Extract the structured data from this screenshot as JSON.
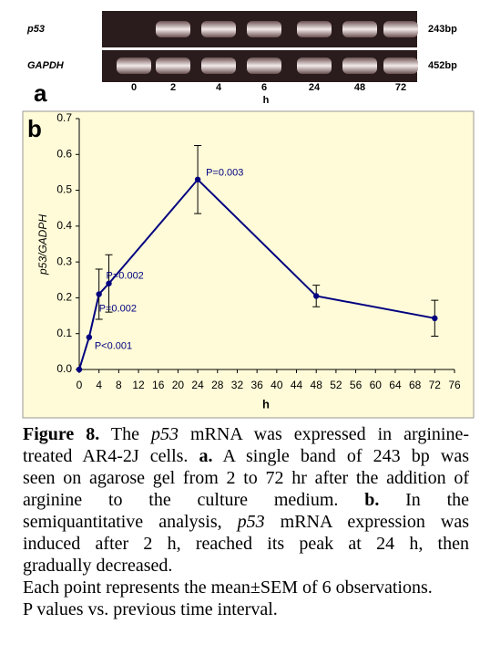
{
  "panel_a": {
    "label": "a",
    "rows": [
      {
        "name": "p53",
        "size": "243bp"
      },
      {
        "name": "GAPDH",
        "size": "452bp"
      }
    ],
    "lanes": [
      "0",
      "2",
      "4",
      "6",
      "24",
      "48",
      "72"
    ],
    "lane_unit": "h"
  },
  "panel_b": {
    "label": "b",
    "chart_data": {
      "type": "line",
      "x_label": "h",
      "y_label": "p53/GADPH",
      "x": [
        0,
        2,
        4,
        6,
        24,
        48,
        72
      ],
      "values": [
        0,
        0.09,
        0.21,
        0.24,
        0.53,
        0.205,
        0.143
      ],
      "errors": [
        null,
        null,
        0.07,
        0.08,
        0.095,
        0.03,
        0.05
      ],
      "color": "#000080",
      "annotations": [
        "P<0.001",
        "P=0.002",
        "P=0.002",
        "P=0.003"
      ],
      "xlim": [
        0,
        76
      ],
      "xticks": [
        0,
        4,
        8,
        12,
        16,
        20,
        24,
        28,
        32,
        36,
        40,
        44,
        48,
        52,
        56,
        60,
        64,
        68,
        72,
        76
      ],
      "ylim": [
        0,
        0.7
      ],
      "yticks": [
        {
          "value": 0,
          "label": "0.0"
        },
        0.1,
        0.2,
        0.3,
        0.4,
        0.5,
        0.6,
        0.7
      ]
    }
  },
  "caption": {
    "lines": [
      [
        {
          "text": "Figure 8.",
          "style": "bold"
        },
        {
          "text": " The ",
          "style": "normal"
        },
        {
          "text": "p53",
          "style": "italic"
        },
        {
          "text": " mRNA was expressed in arginine-",
          "style": "normal"
        }
      ],
      [
        {
          "text": "treated AR4-2J cells. ",
          "style": "normal"
        },
        {
          "text": "a.",
          "style": "bold"
        },
        {
          "text": " A single band of 243 bp was",
          "style": "normal"
        }
      ],
      [
        {
          "text": "seen on agarose gel from 2 to 72 hr after the addition of",
          "style": "normal"
        }
      ],
      [
        {
          "text": "arginine to the culture medium. ",
          "style": "normal"
        },
        {
          "text": "b.",
          "style": "bold"
        },
        {
          "text": " In the",
          "style": "normal"
        }
      ],
      [
        {
          "text": "semiquantitative analysis, ",
          "style": "normal"
        },
        {
          "text": "p53",
          "style": "italic"
        },
        {
          "text": " mRNA expression was",
          "style": "normal"
        }
      ],
      [
        {
          "text": "induced after 2 h, reached its peak at 24 h, then",
          "style": "normal"
        }
      ],
      [
        {
          "text": "gradually decreased.",
          "style": "normal"
        }
      ]
    ],
    "notes": [
      "Each point represents the mean±SEM of 6 observations.",
      "P values vs. previous time interval."
    ]
  }
}
